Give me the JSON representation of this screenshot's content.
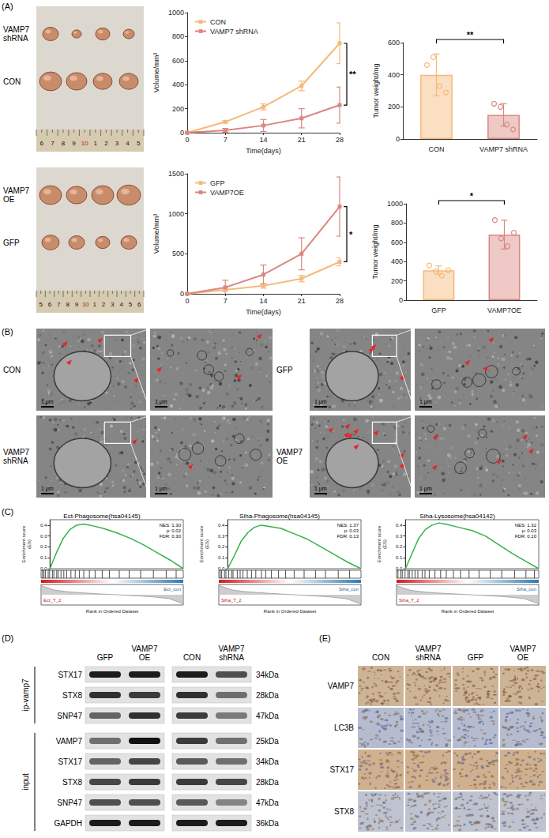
{
  "chart_data": [
    {
      "type": "line",
      "xlabel": "Time(days)",
      "ylabel": "Volume/mm³",
      "x": [
        0,
        7,
        14,
        21,
        28
      ],
      "xlim": [
        0,
        28
      ],
      "xticks": [
        0,
        7,
        14,
        21,
        28
      ],
      "ylim": [
        0,
        1000
      ],
      "yticks": [
        0,
        200,
        400,
        600,
        800,
        1000
      ],
      "legend": "top-left",
      "grid": false,
      "marker": "square",
      "significance": "**",
      "series": [
        {
          "name": "CON",
          "color": "#f5b97a",
          "values": [
            0,
            90,
            215,
            390,
            745
          ],
          "errors": [
            0,
            10,
            25,
            40,
            170
          ]
        },
        {
          "name": "VAMP7 shRNA",
          "color": "#d98880",
          "values": [
            0,
            20,
            60,
            120,
            230
          ],
          "errors": [
            0,
            15,
            50,
            80,
            150
          ]
        }
      ]
    },
    {
      "type": "bar",
      "ylabel": "Tumor weight/mg",
      "categories": [
        "CON",
        "VAMP7 shRNA"
      ],
      "values": [
        400,
        150
      ],
      "errors": [
        130,
        70
      ],
      "points": [
        [
          460,
          510,
          330,
          290
        ],
        [
          220,
          200,
          90,
          60
        ]
      ],
      "colors": [
        "#f5b97a",
        "#d98880"
      ],
      "ylim": [
        0,
        600
      ],
      "yticks": [
        0,
        200,
        400,
        600
      ],
      "grid": false,
      "significance": "**"
    },
    {
      "type": "line",
      "xlabel": "Time(days)",
      "ylabel": "Volume/mm³",
      "x": [
        0,
        7,
        14,
        21,
        28
      ],
      "xlim": [
        0,
        28
      ],
      "xticks": [
        0,
        7,
        14,
        21,
        28
      ],
      "ylim": [
        0,
        1500
      ],
      "yticks": [
        0,
        500,
        1000,
        1500
      ],
      "legend": "top-left",
      "grid": false,
      "marker": "square",
      "significance": "*",
      "series": [
        {
          "name": "GFP",
          "color": "#f5b97a",
          "values": [
            0,
            50,
            100,
            190,
            400
          ],
          "errors": [
            0,
            20,
            30,
            40,
            50
          ]
        },
        {
          "name": "VAMP7OE",
          "color": "#d98880",
          "values": [
            0,
            80,
            240,
            500,
            1090
          ],
          "errors": [
            0,
            90,
            120,
            200,
            370
          ]
        }
      ]
    },
    {
      "type": "bar",
      "ylabel": "Tumor weight/mg",
      "categories": [
        "GFP",
        "VAMP7OE"
      ],
      "values": [
        310,
        680
      ],
      "errors": [
        45,
        150
      ],
      "points": [
        [
          360,
          300,
          255,
          310
        ],
        [
          830,
          640,
          560,
          700
        ]
      ],
      "colors": [
        "#f5b97a",
        "#d98880"
      ],
      "ylim": [
        0,
        1000
      ],
      "yticks": [
        0,
        200,
        400,
        600,
        800,
        1000
      ],
      "grid": false,
      "significance": "*"
    },
    {
      "type": "gsea",
      "title": "Ect-Phagosome(hsa04145)",
      "ylabel": "Enrichment score (ES)",
      "xlabel": "Rank in Ordered Dataset",
      "color": "#33b24a",
      "grid": false,
      "tick_labels": "y",
      "x": [
        0,
        5,
        10,
        15,
        20,
        25,
        30,
        40,
        50,
        60,
        70,
        80,
        90,
        100
      ],
      "values": [
        0,
        0.15,
        0.28,
        0.36,
        0.4,
        0.41,
        0.4,
        0.37,
        0.33,
        0.28,
        0.22,
        0.15,
        0.08,
        0
      ],
      "xlim": [
        0,
        100
      ],
      "ylim": [
        0,
        0.45
      ],
      "yticks": [
        {
          "value": 0,
          "label": "0.0"
        },
        0.1,
        0.2,
        0.3,
        0.4
      ],
      "annotations": [
        "NES: 1.30",
        "p: 0.02",
        "FDR: 0.30"
      ],
      "phenotypes": [
        "Ect_T_2",
        "Ect_con"
      ],
      "hits": [
        1,
        2,
        3,
        5,
        6,
        8,
        9,
        11,
        12,
        14,
        16,
        18,
        21,
        24,
        27,
        30,
        34,
        38,
        43,
        48,
        55,
        62,
        70,
        79,
        88,
        95
      ],
      "metric": {
        "x": [
          0,
          10,
          20,
          30,
          40,
          50,
          60,
          70,
          80,
          90,
          100
        ],
        "values": [
          0.7,
          0.35,
          0.22,
          0.14,
          0.07,
          0.02,
          -0.04,
          -0.1,
          -0.18,
          -0.3,
          -0.7
        ],
        "ylim": [
          -0.8,
          0.8
        ]
      }
    },
    {
      "type": "gsea",
      "title": "Siha-Phagosome(hsa04145)",
      "ylabel": "Enrichment score (ES)",
      "xlabel": "Rank in Ordered Dataset",
      "color": "#33b24a",
      "grid": false,
      "tick_labels": "y",
      "x": [
        0,
        5,
        10,
        15,
        20,
        25,
        30,
        40,
        50,
        60,
        70,
        80,
        90,
        100
      ],
      "values": [
        0,
        0.12,
        0.25,
        0.33,
        0.38,
        0.4,
        0.39,
        0.37,
        0.32,
        0.27,
        0.2,
        0.13,
        0.06,
        0
      ],
      "xlim": [
        0,
        100
      ],
      "ylim": [
        0,
        0.45
      ],
      "yticks": [
        {
          "value": 0,
          "label": "0.0"
        },
        0.1,
        0.2,
        0.3,
        0.4
      ],
      "annotations": [
        "NES: 1.37",
        "p: 0.03",
        "FDR: 0.13"
      ],
      "phenotypes": [
        "Siha_T_2",
        "Siha_con"
      ],
      "hits": [
        1,
        2,
        4,
        5,
        7,
        9,
        10,
        13,
        15,
        17,
        20,
        23,
        26,
        30,
        33,
        37,
        42,
        47,
        53,
        60,
        68,
        75,
        84,
        92
      ],
      "metric": {
        "x": [
          0,
          10,
          20,
          30,
          40,
          50,
          60,
          70,
          80,
          90,
          100
        ],
        "values": [
          0.72,
          0.36,
          0.23,
          0.15,
          0.08,
          0.02,
          -0.04,
          -0.11,
          -0.19,
          -0.32,
          -0.72
        ],
        "ylim": [
          -0.8,
          0.8
        ]
      }
    },
    {
      "type": "gsea",
      "title": "Siha-Lysosome(hsa04142)",
      "ylabel": "Enrichment score (ES)",
      "xlabel": "Rank in Ordered Dataset",
      "color": "#33b24a",
      "grid": false,
      "tick_labels": "y",
      "x": [
        0,
        5,
        10,
        15,
        20,
        25,
        30,
        40,
        50,
        60,
        70,
        80,
        90,
        100
      ],
      "values": [
        0,
        0.14,
        0.28,
        0.36,
        0.4,
        0.42,
        0.41,
        0.38,
        0.35,
        0.3,
        0.22,
        0.14,
        0.07,
        0
      ],
      "xlim": [
        0,
        100
      ],
      "ylim": [
        0,
        0.45
      ],
      "yticks": [
        {
          "value": 0,
          "label": "0.0"
        },
        0.1,
        0.2,
        0.3,
        0.4
      ],
      "annotations": [
        "NES: 1.32",
        "p: 0.03",
        "FDR: 0.10"
      ],
      "phenotypes": [
        "Siha_T_2",
        "Siha_con"
      ],
      "hits": [
        1,
        3,
        4,
        6,
        8,
        9,
        11,
        13,
        15,
        18,
        20,
        23,
        27,
        31,
        35,
        40,
        45,
        51,
        58,
        66,
        74,
        83,
        91,
        97
      ],
      "metric": {
        "x": [
          0,
          10,
          20,
          30,
          40,
          50,
          60,
          70,
          80,
          90,
          100
        ],
        "values": [
          0.7,
          0.34,
          0.21,
          0.13,
          0.07,
          0.01,
          -0.05,
          -0.11,
          -0.19,
          -0.31,
          -0.7
        ],
        "ylim": [
          -0.8,
          0.8
        ]
      }
    }
  ],
  "figure": {
    "panel_letters": [
      "(A)",
      "(B)",
      "(C)",
      "(D)",
      "(E)"
    ],
    "photos": [
      {
        "labels": [
          "VAMP7 shRNA",
          "CON"
        ],
        "ruler": [
          "6",
          "7",
          "8",
          "9",
          "10",
          "1",
          "2",
          "3",
          "4",
          "5"
        ]
      },
      {
        "labels": [
          "VAMP7 OE",
          "GFP"
        ],
        "ruler": [
          "5",
          "6",
          "7",
          "8",
          "9",
          "10",
          "1",
          "2",
          "3",
          "4",
          "5",
          "6"
        ]
      }
    ],
    "tem": [
      {
        "label": "CON",
        "scale": [
          "1 μm",
          "1 μm"
        ]
      },
      {
        "label": "VAMP7 shRNA",
        "scale": [
          "1 μm",
          "1 μm"
        ]
      },
      {
        "label": "GFP",
        "scale": [
          "1 μm",
          "1 μm"
        ]
      },
      {
        "label": "VAMP7 OE",
        "scale": [
          "1 μm",
          "1 μm"
        ]
      }
    ],
    "blot": {
      "lanes": [
        [
          "GFP",
          "VAMP7 OE"
        ],
        [
          "CON",
          "VAMP7 shRNA"
        ]
      ],
      "groups": [
        {
          "label": "ip-vamp7",
          "rows": [
            {
              "name": "STX17",
              "size": "34kDa",
              "bands": [
                0.95,
                0.95,
                0.95,
                0.7
              ]
            },
            {
              "name": "STX8",
              "size": "28kDa",
              "bands": [
                0.85,
                0.8,
                0.85,
                0.55
              ]
            },
            {
              "name": "SNP47",
              "size": "47kDa",
              "bands": [
                0.6,
                0.85,
                0.8,
                0.5
              ]
            }
          ]
        },
        {
          "label": "input",
          "rows": [
            {
              "name": "VAMP7",
              "size": "25kDa",
              "bands": [
                0.55,
                1,
                0.8,
                0.55
              ]
            },
            {
              "name": "STX17",
              "size": "34kDa",
              "bands": [
                0.6,
                0.75,
                0.65,
                0.55
              ]
            },
            {
              "name": "STX8",
              "size": "28kDa",
              "bands": [
                0.75,
                0.8,
                0.8,
                0.75
              ]
            },
            {
              "name": "SNP47",
              "size": "47kDa",
              "bands": [
                0.7,
                0.7,
                0.65,
                0.45
              ]
            },
            {
              "name": "GAPDH",
              "size": "36kDa",
              "bands": [
                0.95,
                0.95,
                0.95,
                0.95
              ]
            }
          ]
        }
      ]
    },
    "ihc": {
      "columns": [
        "CON",
        "VAMP7 shRNA",
        "GFP",
        "VAMP7 OE"
      ],
      "rows": [
        "VAMP7",
        "LC3B",
        "STX17",
        "STX8"
      ]
    }
  }
}
